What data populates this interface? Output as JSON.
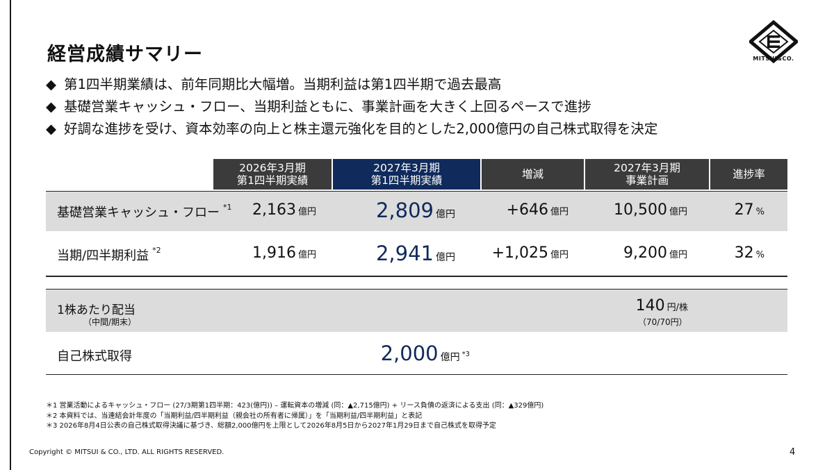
{
  "title": "経営成績サマリー",
  "logo": {
    "text": "MITSUI&CO."
  },
  "bullets": [
    "第1四半期業績は、前年同期比大幅増。当期利益は第1四半期で過去最高",
    "基礎営業キャッシュ・フロー、当期利益ともに、事業計画を大きく上回るペースで進捗",
    "好調な進捗を受け、資本効率の向上と株主還元強化を目的とした2,000億円の自己株式取得を決定"
  ],
  "bullet_marker": "◆",
  "table": {
    "headers": {
      "fy2026_q1": {
        "line1": "2026年3月期",
        "line2": "第1四半期実績"
      },
      "fy2027_q1": {
        "line1": "2027年3月期",
        "line2": "第1四半期実績"
      },
      "change": {
        "line1": "増減"
      },
      "plan": {
        "line1": "2027年3月期",
        "line2": "事業計画"
      },
      "progress": {
        "line1": "進捗率"
      }
    },
    "rows": [
      {
        "label": "基礎営業キャッシュ・フロー",
        "note": "*1",
        "fy2026_q1": "2,163",
        "fy2027_q1": "2,809",
        "change": "+646",
        "plan": "10,500",
        "progress": "27"
      },
      {
        "label": "当期/四半期利益",
        "note": "*2",
        "fy2026_q1": "1,916",
        "fy2027_q1": "2,941",
        "change": "+1,025",
        "plan": "9,200",
        "progress": "32"
      }
    ],
    "unit_oku": "億円",
    "unit_percent": "%",
    "dividend": {
      "label": "1株あたり配当",
      "sublabel": "（中間/期末）",
      "plan": "140",
      "unit": "円/株",
      "plan_sub": "（70/70円）"
    },
    "buyback": {
      "label": "自己株式取得",
      "fy2027_q1": "2,000",
      "unit": "億円",
      "note": "*3"
    }
  },
  "footnotes": [
    "＊1 営業活動によるキャッシュ・フロー (27/3期第1四半期：423(億円)) – 運転資本の増減 (同：▲2,715億円) + リース負債の返済による支出 (同：▲329億円)",
    "＊2 本資料では、当連結会計年度の「当期利益/四半期利益（親会社の所有者に帰属）」を「当期利益/四半期利益」と表記",
    "＊3 2026年8月4日公表の自己株式取得決議に基づき、総額2,000億円を上限として2026年8月5日から2027年1月29日まで自己株式を取得予定"
  ],
  "copyright": "Copyright © MITSUI & CO., LTD. ALL RIGHTS RESERVED.",
  "page_number": "4",
  "colors": {
    "navy": "#0f2a5b",
    "header_dark": "#3b3b3b",
    "band_gray": "#dcdcdc"
  }
}
